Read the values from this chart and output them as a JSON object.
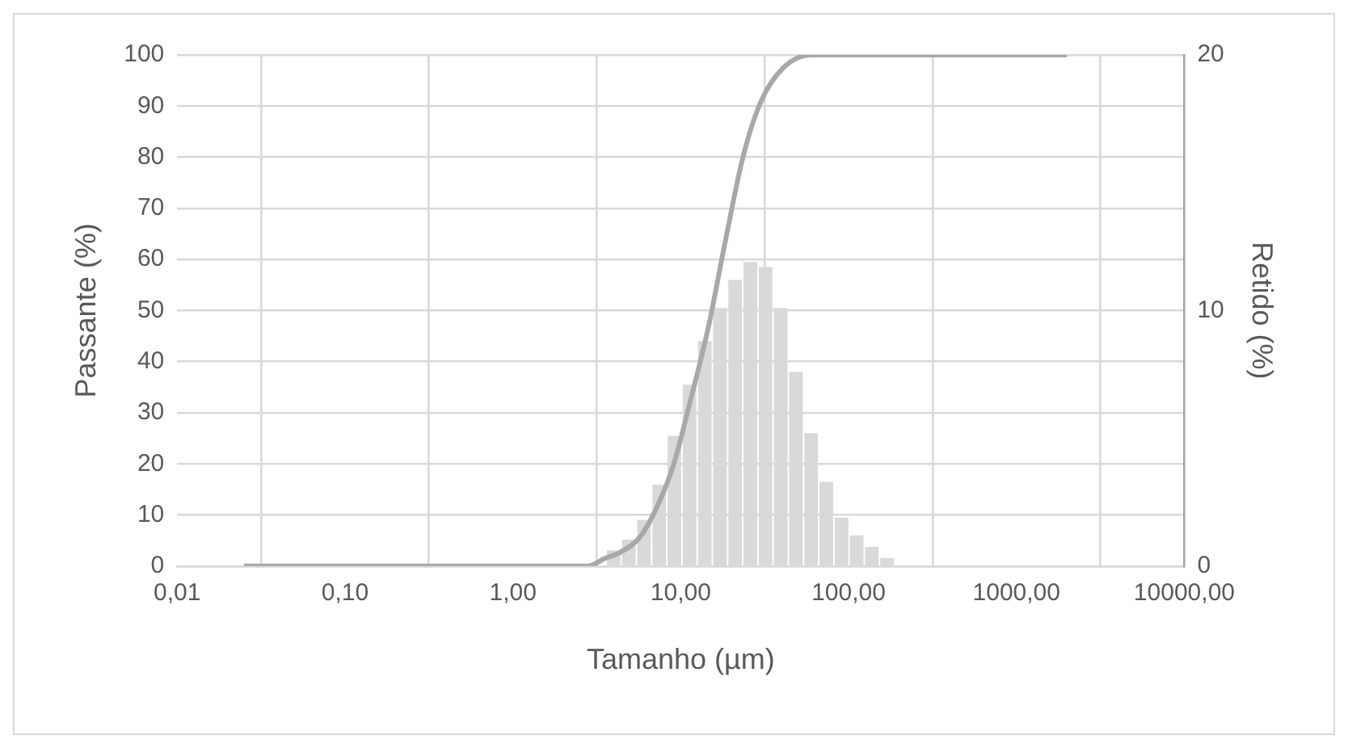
{
  "chart_data": {
    "type": "line",
    "xlabel": "Tamanho (µm)",
    "ylabel": "Passante (%)",
    "y2label": "Retido (%)",
    "log": "x",
    "grid": true,
    "legend": false,
    "xlim": [
      0.01,
      10000
    ],
    "xticks": [
      {
        "value": 0.01,
        "label": "0,01"
      },
      {
        "value": 0.1,
        "label": "0,10"
      },
      {
        "value": 1,
        "label": "1,00"
      },
      {
        "value": 10,
        "label": "10,00"
      },
      {
        "value": 100,
        "label": "100,00"
      },
      {
        "value": 1000,
        "label": "1000,00"
      },
      {
        "value": 10000,
        "label": "10000,00"
      }
    ],
    "ylim": [
      0,
      100
    ],
    "yticks": [
      0,
      10,
      20,
      30,
      40,
      50,
      60,
      70,
      80,
      90,
      100
    ],
    "y2lim": [
      0,
      20
    ],
    "y2ticks": [
      0,
      10,
      20
    ],
    "series": [
      {
        "type": "histogram",
        "axis": "y2",
        "color": "#d9d9d9",
        "bins": [
          3.59,
          4.42,
          5.44,
          6.71,
          8.26,
          10.17,
          12.53,
          15.44,
          19.01,
          23.42,
          28.84,
          35.52,
          43.75,
          53.89,
          66.37,
          81.75,
          100.7,
          124.0,
          152.8,
          188.2
        ],
        "values": [
          0.62,
          1.04,
          1.81,
          3.18,
          5.1,
          7.1,
          8.8,
          10.1,
          11.2,
          11.9,
          11.7,
          10.1,
          7.6,
          5.2,
          3.3,
          1.9,
          1.2,
          0.75,
          0.32
        ]
      },
      {
        "axis": "y",
        "color": "#aba7a7",
        "x": [
          0.025,
          2.79,
          3.53,
          4.3,
          5.66,
          7.18,
          9.1,
          11.5,
          14.6,
          18.5,
          23.4,
          29.7,
          40.6,
          60.4,
          2000
        ],
        "values": [
          0,
          0,
          1.5,
          2.6,
          5.5,
          11.4,
          20,
          32.8,
          46.7,
          63.8,
          79.8,
          90.5,
          97.4,
          100,
          100
        ]
      }
    ]
  }
}
